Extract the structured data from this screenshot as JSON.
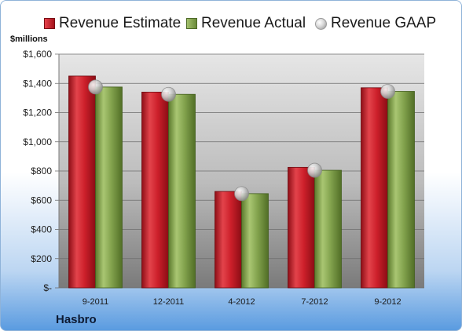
{
  "unit_label": "$millions",
  "company": "Hasbro",
  "colors": {
    "estimate": "#cc1f2a",
    "actual": "#7f9f4a",
    "gaap": "#c8c8c8"
  },
  "chart_data": {
    "type": "bar",
    "categories": [
      "9-2011",
      "12-2011",
      "4-2012",
      "7-2012",
      "9-2012"
    ],
    "series": [
      {
        "name": "Revenue Estimate",
        "values": [
          1450,
          1340,
          660,
          825,
          1370
        ]
      },
      {
        "name": "Revenue Actual",
        "values": [
          1375,
          1325,
          645,
          805,
          1345
        ]
      },
      {
        "name": "Revenue GAAP",
        "values": [
          1375,
          1325,
          645,
          805,
          1345
        ]
      }
    ],
    "ylim": [
      0,
      1600
    ],
    "yticks": [
      0,
      200,
      400,
      600,
      800,
      1000,
      1200,
      1400,
      1600
    ],
    "ytick_labels": [
      "$-",
      "$200",
      "$400",
      "$600",
      "$800",
      "$1,000",
      "$1,200",
      "$1,400",
      "$1,600"
    ],
    "grid": true,
    "legend_position": "top"
  }
}
